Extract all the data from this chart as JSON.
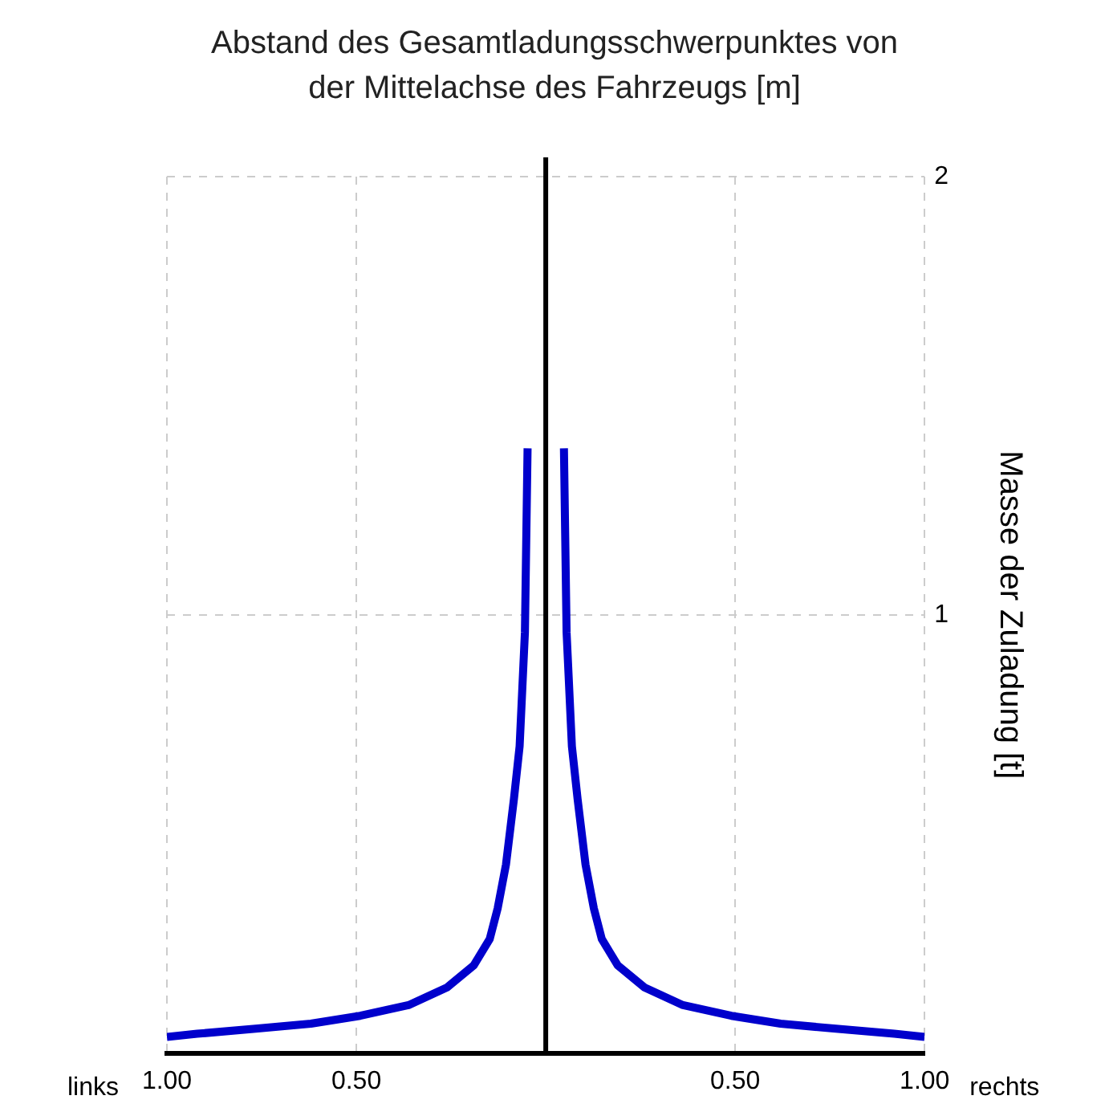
{
  "chart_data": {
    "type": "line",
    "title": "Abstand des Gesamtladungsschwerpunktes von der Mittelachse des Fahrzeugs [m]",
    "ylabel": "Masse der Zuladung [t]",
    "annotations": [
      "links",
      "rechts"
    ],
    "series": [
      {
        "color": "#0000cc",
        "x": [
          -1.0,
          -0.92,
          -0.76,
          -0.62,
          -0.49,
          -0.36,
          -0.26,
          -0.19,
          -0.148,
          -0.127,
          -0.105,
          -0.084,
          -0.069,
          -0.055,
          -0.048
        ],
        "values": [
          0.037,
          0.044,
          0.056,
          0.067,
          0.085,
          0.11,
          0.15,
          0.2,
          0.26,
          0.33,
          0.43,
          0.58,
          0.7,
          0.96,
          1.38
        ]
      },
      {
        "color": "#0000cc",
        "x": [
          0.048,
          0.055,
          0.069,
          0.084,
          0.105,
          0.127,
          0.148,
          0.19,
          0.26,
          0.36,
          0.49,
          0.62,
          0.76,
          0.92,
          1.0
        ],
        "values": [
          1.38,
          0.96,
          0.7,
          0.58,
          0.43,
          0.33,
          0.26,
          0.2,
          0.15,
          0.11,
          0.085,
          0.067,
          0.056,
          0.044,
          0.037
        ]
      }
    ],
    "xlim": [
      -1,
      1
    ],
    "xticks": [
      {
        "value": -1,
        "label": "1.00"
      },
      {
        "value": -0.5,
        "label": "0.50"
      },
      {
        "value": 0.5,
        "label": "0.50"
      },
      {
        "value": 1,
        "label": "1.00"
      }
    ],
    "ylim": [
      0,
      2
    ],
    "yticks": [
      1,
      2
    ],
    "ref_lines": [
      {
        "axis": "x",
        "value": 0,
        "color": "#000000"
      }
    ],
    "grid": true,
    "legend": false,
    "marker": "none",
    "line_style": "solid"
  }
}
